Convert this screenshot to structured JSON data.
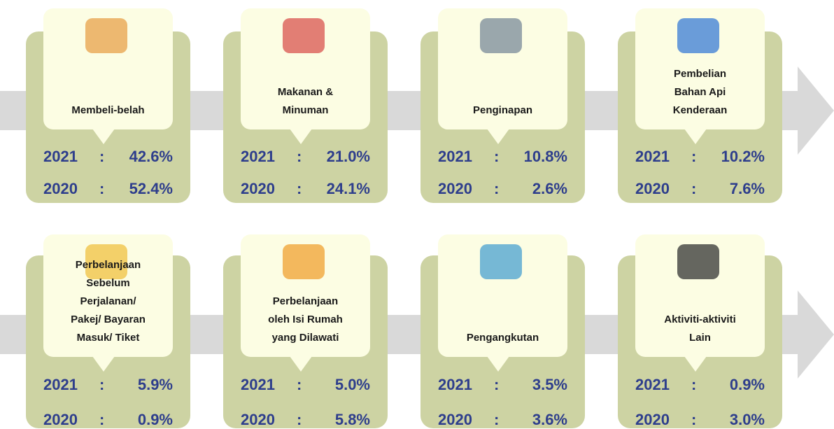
{
  "separator": ":",
  "cards": [
    {
      "label": [
        "Membeli-belah"
      ],
      "rows": [
        {
          "year": "2021",
          "value": "42.6%"
        },
        {
          "year": "2020",
          "value": "52.4%"
        }
      ]
    },
    {
      "label": [
        "Makanan &",
        "Minuman"
      ],
      "rows": [
        {
          "year": "2021",
          "value": "21.0%"
        },
        {
          "year": "2020",
          "value": "24.1%"
        }
      ]
    },
    {
      "label": [
        "Penginapan"
      ],
      "rows": [
        {
          "year": "2021",
          "value": "10.8%"
        },
        {
          "year": "2020",
          "value": "2.6%"
        }
      ]
    },
    {
      "label": [
        "Pembelian",
        "Bahan Api",
        "Kenderaan"
      ],
      "rows": [
        {
          "year": "2021",
          "value": "10.2%"
        },
        {
          "year": "2020",
          "value": "7.6%"
        }
      ]
    },
    {
      "label": [
        "Perbelanjaan",
        "Sebelum",
        "Perjalanan/",
        "Pakej/ Bayaran",
        "Masuk/ Tiket"
      ],
      "rows": [
        {
          "year": "2021",
          "value": "5.9%"
        },
        {
          "year": "2020",
          "value": "0.9%"
        }
      ]
    },
    {
      "label": [
        "Perbelanjaan",
        "oleh Isi Rumah",
        "yang Dilawati"
      ],
      "rows": [
        {
          "year": "2021",
          "value": "5.0%"
        },
        {
          "year": "2020",
          "value": "5.8%"
        }
      ]
    },
    {
      "label": [
        "Pengangkutan"
      ],
      "rows": [
        {
          "year": "2021",
          "value": "3.5%"
        },
        {
          "year": "2020",
          "value": "3.6%"
        }
      ]
    },
    {
      "label": [
        "Aktiviti-aktiviti",
        "Lain"
      ],
      "rows": [
        {
          "year": "2021",
          "value": "0.9%"
        },
        {
          "year": "2020",
          "value": "3.0%"
        }
      ]
    }
  ]
}
